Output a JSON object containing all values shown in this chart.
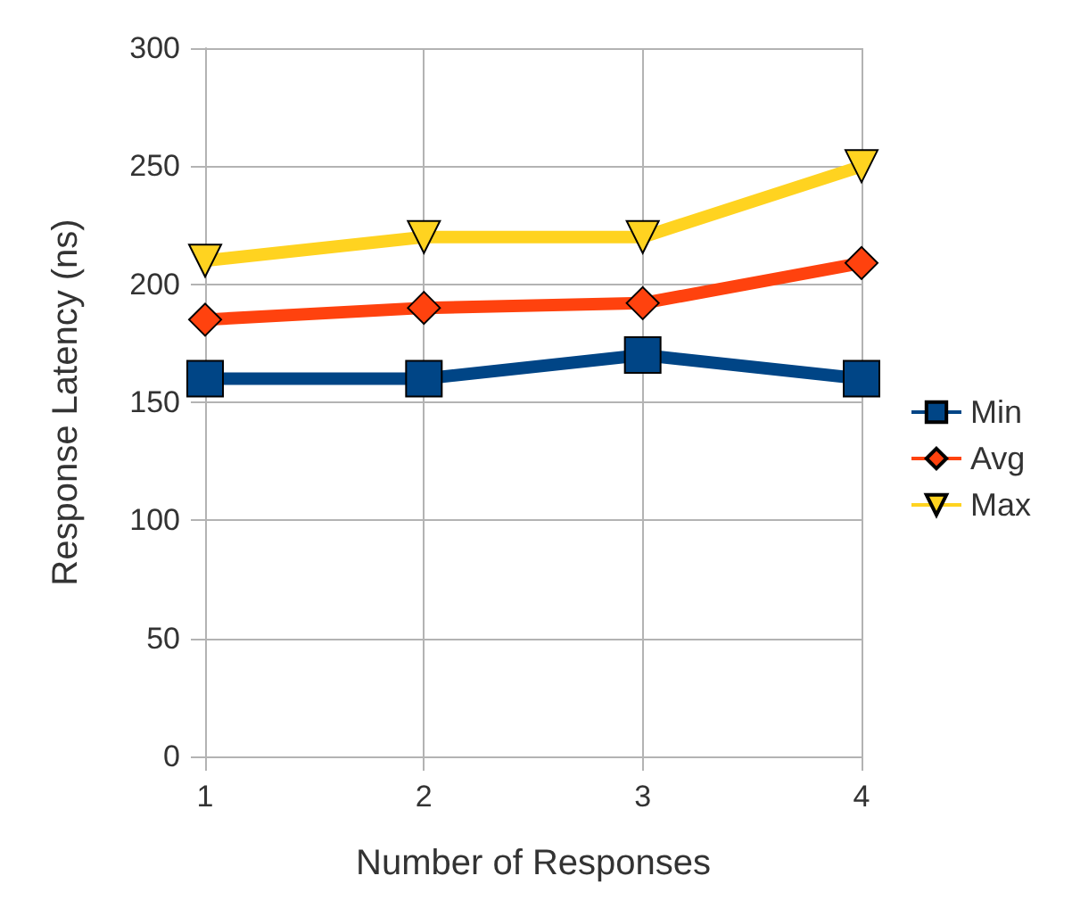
{
  "chart_data": {
    "type": "line",
    "xlabel": "Number of Responses",
    "ylabel": "Response Latency (ns)",
    "x": [
      1,
      2,
      3,
      4
    ],
    "xlim": [
      1,
      4
    ],
    "xticks": [
      1,
      2,
      3,
      4
    ],
    "ylim": [
      0,
      300
    ],
    "yticks": [
      0,
      50,
      100,
      150,
      200,
      250,
      300
    ],
    "series": [
      {
        "name": "Min",
        "color": "#004586",
        "marker": "square",
        "values": [
          160,
          160,
          170,
          160
        ]
      },
      {
        "name": "Avg",
        "color": "#ff420e",
        "marker": "diamond",
        "values": [
          185,
          190,
          192,
          209
        ]
      },
      {
        "name": "Max",
        "color": "#ffd320",
        "marker": "triangle",
        "values": [
          210,
          220,
          220,
          250
        ]
      }
    ],
    "grid": true,
    "legend": "right",
    "line_style": "solid"
  }
}
